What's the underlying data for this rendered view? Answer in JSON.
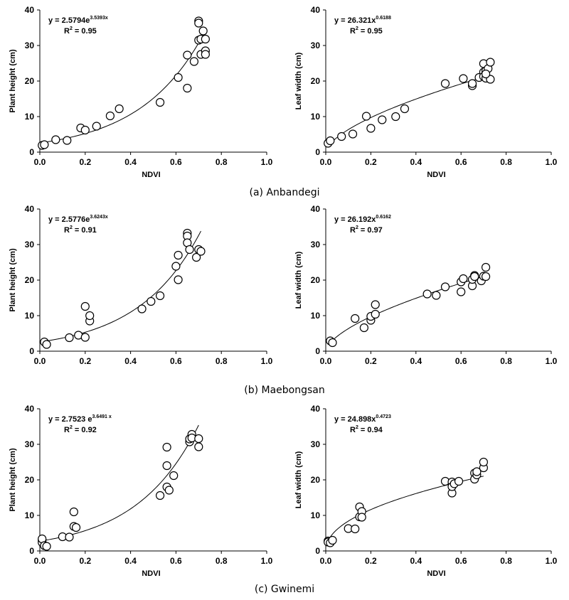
{
  "colors": {
    "marker_stroke": "#000000",
    "curve": "#000000",
    "axis": "#000000",
    "background": "#ffffff"
  },
  "captions": [
    "(a) Anbandegi",
    "(b) Maebongsan",
    "(c) Gwinemi"
  ],
  "chart_data": [
    {
      "type": "scatter",
      "site": "Anbandegi",
      "xlabel": "NDVI",
      "ylabel": "Plant height (cm)",
      "xlim": [
        0,
        1
      ],
      "ylim": [
        0,
        40
      ],
      "xticks": [
        "0.0",
        "0.2",
        "0.4",
        "0.6",
        "0.8",
        "1.0"
      ],
      "yticks": [
        "0",
        "10",
        "20",
        "30",
        "40"
      ],
      "equation": {
        "base": "y = 2.5794e",
        "exponent": "3.5393x",
        "r2_label": "R",
        "r2_sup": "2",
        "r2_value": " = 0.95"
      },
      "fit": {
        "model": "exp",
        "a": 2.5794,
        "b": 3.5393,
        "x_range": [
          0.01,
          0.73
        ]
      },
      "points": [
        [
          0.01,
          1.9
        ],
        [
          0.02,
          2.1
        ],
        [
          0.07,
          3.5
        ],
        [
          0.12,
          3.3
        ],
        [
          0.18,
          6.8
        ],
        [
          0.2,
          6.2
        ],
        [
          0.25,
          7.3
        ],
        [
          0.31,
          10.2
        ],
        [
          0.35,
          12.2
        ],
        [
          0.53,
          14.0
        ],
        [
          0.61,
          21.0
        ],
        [
          0.65,
          27.3
        ],
        [
          0.65,
          18.0
        ],
        [
          0.68,
          25.5
        ],
        [
          0.7,
          36.9
        ],
        [
          0.7,
          36.3
        ],
        [
          0.7,
          31.5
        ],
        [
          0.71,
          31.8
        ],
        [
          0.71,
          27.5
        ],
        [
          0.72,
          34.1
        ],
        [
          0.73,
          31.8
        ],
        [
          0.73,
          28.5
        ],
        [
          0.73,
          27.5
        ]
      ]
    },
    {
      "type": "scatter",
      "site": "Anbandegi",
      "xlabel": "NDVI",
      "ylabel": "Leaf width (cm)",
      "xlim": [
        0,
        1
      ],
      "ylim": [
        0,
        40
      ],
      "xticks": [
        "0.0",
        "0.2",
        "0.4",
        "0.6",
        "0.8",
        "1.0"
      ],
      "yticks": [
        "0",
        "10",
        "20",
        "30",
        "40"
      ],
      "equation": {
        "base": "y = 26.321x",
        "exponent": "0.6188",
        "r2_label": "R",
        "r2_sup": "2",
        "r2_value": " = 0.95"
      },
      "fit": {
        "model": "pow",
        "a": 26.321,
        "b": 0.6188,
        "x_range": [
          0.01,
          0.73
        ]
      },
      "points": [
        [
          0.01,
          2.5
        ],
        [
          0.02,
          3.2
        ],
        [
          0.07,
          4.4
        ],
        [
          0.12,
          5.1
        ],
        [
          0.18,
          10.1
        ],
        [
          0.2,
          6.7
        ],
        [
          0.25,
          9.1
        ],
        [
          0.31,
          10.0
        ],
        [
          0.35,
          12.2
        ],
        [
          0.53,
          19.3
        ],
        [
          0.61,
          20.7
        ],
        [
          0.65,
          18.7
        ],
        [
          0.65,
          19.3
        ],
        [
          0.68,
          21.0
        ],
        [
          0.7,
          22.5
        ],
        [
          0.7,
          24.9
        ],
        [
          0.7,
          21.3
        ],
        [
          0.71,
          22.9
        ],
        [
          0.71,
          20.8
        ],
        [
          0.72,
          23.5
        ],
        [
          0.73,
          25.3
        ],
        [
          0.73,
          20.5
        ],
        [
          0.71,
          22.0
        ]
      ]
    },
    {
      "type": "scatter",
      "site": "Maebongsan",
      "xlabel": "",
      "ylabel": "Plant height (cm)",
      "xlim": [
        0,
        1
      ],
      "ylim": [
        0,
        40
      ],
      "xticks": [
        "0.0",
        "0.2",
        "0.4",
        "0.6",
        "0.8",
        "1.0"
      ],
      "yticks": [
        "0",
        "10",
        "20",
        "30",
        "40"
      ],
      "equation": {
        "base": "y = 2.5776e",
        "exponent": "3.6243x",
        "r2_label": "R",
        "r2_sup": "2",
        "r2_value": " = 0.91"
      },
      "fit": {
        "model": "exp",
        "a": 2.5776,
        "b": 3.6243,
        "x_range": [
          0.02,
          0.71
        ]
      },
      "points": [
        [
          0.02,
          2.6
        ],
        [
          0.03,
          1.9
        ],
        [
          0.13,
          3.8
        ],
        [
          0.17,
          4.5
        ],
        [
          0.2,
          3.9
        ],
        [
          0.2,
          12.6
        ],
        [
          0.22,
          8.5
        ],
        [
          0.22,
          10.0
        ],
        [
          0.45,
          11.9
        ],
        [
          0.49,
          14.0
        ],
        [
          0.53,
          15.6
        ],
        [
          0.6,
          23.9
        ],
        [
          0.61,
          27.0
        ],
        [
          0.61,
          20.1
        ],
        [
          0.65,
          33.2
        ],
        [
          0.65,
          32.4
        ],
        [
          0.65,
          30.5
        ],
        [
          0.66,
          28.6
        ],
        [
          0.69,
          26.4
        ],
        [
          0.7,
          28.6
        ],
        [
          0.71,
          28.1
        ]
      ]
    },
    {
      "type": "scatter",
      "site": "Maebongsan",
      "xlabel": "",
      "ylabel": "Leaf width (cm)",
      "xlim": [
        0,
        1
      ],
      "ylim": [
        0,
        40
      ],
      "xticks": [
        "0.0",
        "0.2",
        "0.4",
        "0.6",
        "0.8",
        "1.0"
      ],
      "yticks": [
        "0",
        "10",
        "20",
        "30",
        "40"
      ],
      "equation": {
        "base": "y = 26.192x",
        "exponent": "0.6162",
        "r2_label": "R",
        "r2_sup": "2",
        "r2_value": " = 0.97"
      },
      "fit": {
        "model": "pow",
        "a": 26.192,
        "b": 0.6162,
        "x_range": [
          0.02,
          0.71
        ]
      },
      "points": [
        [
          0.02,
          2.9
        ],
        [
          0.03,
          2.4
        ],
        [
          0.13,
          9.2
        ],
        [
          0.17,
          6.6
        ],
        [
          0.2,
          8.7
        ],
        [
          0.2,
          9.8
        ],
        [
          0.22,
          10.4
        ],
        [
          0.22,
          13.1
        ],
        [
          0.45,
          16.1
        ],
        [
          0.49,
          15.7
        ],
        [
          0.53,
          18.1
        ],
        [
          0.6,
          19.5
        ],
        [
          0.6,
          16.7
        ],
        [
          0.61,
          20.4
        ],
        [
          0.65,
          18.4
        ],
        [
          0.65,
          20.2
        ],
        [
          0.66,
          21.3
        ],
        [
          0.66,
          21.0
        ],
        [
          0.69,
          19.8
        ],
        [
          0.7,
          21.1
        ],
        [
          0.71,
          23.6
        ],
        [
          0.71,
          21.0
        ]
      ]
    },
    {
      "type": "scatter",
      "site": "Gwinemi",
      "xlabel": "NDVI",
      "ylabel": "Plant height (cm)",
      "xlim": [
        0,
        1
      ],
      "ylim": [
        0,
        40
      ],
      "xticks": [
        "0.0",
        "0.2",
        "0.4",
        "0.6",
        "0.8",
        "1.0"
      ],
      "yticks": [
        "0",
        "10",
        "20",
        "30",
        "40"
      ],
      "equation": {
        "base": "y = 2.7523 e",
        "exponent": "3.6491 x",
        "r2_label": "R",
        "r2_sup": "2",
        "r2_value": " = 0.92"
      },
      "fit": {
        "model": "exp",
        "a": 2.7523,
        "b": 3.6491,
        "x_range": [
          0.01,
          0.7
        ]
      },
      "points": [
        [
          0.01,
          3.0
        ],
        [
          0.01,
          2.4
        ],
        [
          0.01,
          3.4
        ],
        [
          0.02,
          1.5
        ],
        [
          0.03,
          1.3
        ],
        [
          0.1,
          4.0
        ],
        [
          0.13,
          3.9
        ],
        [
          0.15,
          6.9
        ],
        [
          0.15,
          11.0
        ],
        [
          0.16,
          6.6
        ],
        [
          0.53,
          15.6
        ],
        [
          0.56,
          29.2
        ],
        [
          0.56,
          24.0
        ],
        [
          0.56,
          18.0
        ],
        [
          0.57,
          17.1
        ],
        [
          0.59,
          21.2
        ],
        [
          0.66,
          30.7
        ],
        [
          0.66,
          31.5
        ],
        [
          0.67,
          32.8
        ],
        [
          0.67,
          31.8
        ],
        [
          0.7,
          31.6
        ],
        [
          0.7,
          29.3
        ]
      ]
    },
    {
      "type": "scatter",
      "site": "Gwinemi",
      "xlabel": "NDVI",
      "ylabel": "Leaf width (cm)",
      "xlim": [
        0,
        1
      ],
      "ylim": [
        0,
        40
      ],
      "xticks": [
        "0.0",
        "0.2",
        "0.4",
        "0.6",
        "0.8",
        "1.0"
      ],
      "yticks": [
        "0",
        "10",
        "20",
        "30",
        "40"
      ],
      "equation": {
        "base": "y = 24.898x",
        "exponent": "0.4723",
        "r2_label": "R",
        "r2_sup": "2",
        "r2_value": " = 0.94"
      },
      "fit": {
        "model": "pow",
        "a": 24.898,
        "b": 0.4723,
        "x_range": [
          0.01,
          0.7
        ]
      },
      "points": [
        [
          0.01,
          2.8
        ],
        [
          0.01,
          2.5
        ],
        [
          0.02,
          2.3
        ],
        [
          0.03,
          3.0
        ],
        [
          0.1,
          6.3
        ],
        [
          0.13,
          6.2
        ],
        [
          0.15,
          9.6
        ],
        [
          0.15,
          12.4
        ],
        [
          0.16,
          11.1
        ],
        [
          0.16,
          9.5
        ],
        [
          0.53,
          19.6
        ],
        [
          0.56,
          19.4
        ],
        [
          0.56,
          16.3
        ],
        [
          0.56,
          18.1
        ],
        [
          0.57,
          18.9
        ],
        [
          0.59,
          19.6
        ],
        [
          0.66,
          21.9
        ],
        [
          0.66,
          20.2
        ],
        [
          0.67,
          21.4
        ],
        [
          0.67,
          22.3
        ],
        [
          0.7,
          23.4
        ],
        [
          0.7,
          25.0
        ]
      ]
    }
  ]
}
